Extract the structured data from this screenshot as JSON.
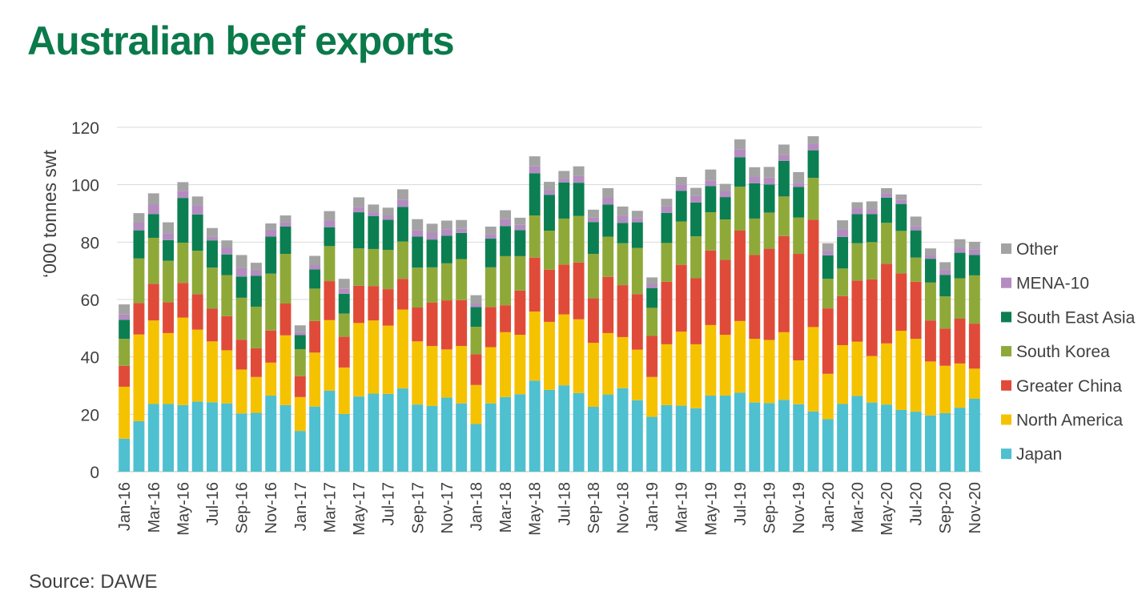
{
  "title": "Australian beef exports",
  "source": "Source: DAWE",
  "colors": {
    "Japan": "#4ec0d0",
    "North America": "#f5c200",
    "Greater China": "#e04b39",
    "South Korea": "#8fa939",
    "South East Asia": "#0b7f52",
    "MENA-10": "#b48cc0",
    "Other": "#a3a3a3"
  },
  "chart_data": {
    "type": "bar",
    "stacked": true,
    "ylabel": "‘000 tonnes swt",
    "ylim": [
      0,
      120
    ],
    "yticks": [
      0,
      20,
      40,
      60,
      80,
      100,
      120
    ],
    "grid": true,
    "legend_position": "right",
    "legend_order": [
      "Other",
      "MENA-10",
      "South East Asia",
      "South Korea",
      "Greater China",
      "North America",
      "Japan"
    ],
    "categories": [
      "Jan-16",
      "Feb-16",
      "Mar-16",
      "Apr-16",
      "May-16",
      "Jun-16",
      "Jul-16",
      "Aug-16",
      "Sep-16",
      "Oct-16",
      "Nov-16",
      "Dec-16",
      "Jan-17",
      "Feb-17",
      "Mar-17",
      "Apr-17",
      "May-17",
      "Jun-17",
      "Jul-17",
      "Aug-17",
      "Sep-17",
      "Oct-17",
      "Nov-17",
      "Dec-17",
      "Jan-18",
      "Feb-18",
      "Mar-18",
      "Apr-18",
      "May-18",
      "Jun-18",
      "Jul-18",
      "Aug-18",
      "Sep-18",
      "Oct-18",
      "Nov-18",
      "Dec-18",
      "Jan-19",
      "Feb-19",
      "Mar-19",
      "Apr-19",
      "May-19",
      "Jun-19",
      "Jul-19",
      "Aug-19",
      "Sep-19",
      "Oct-19",
      "Nov-19",
      "Dec-19",
      "Jan-20",
      "Feb-20",
      "Mar-20",
      "Apr-20",
      "May-20",
      "Jun-20",
      "Jul-20",
      "Aug-20",
      "Sep-20",
      "Oct-20",
      "Nov-20"
    ],
    "tick_labels": [
      "Jan-16",
      "",
      "Mar-16",
      "",
      "May-16",
      "",
      "Jul-16",
      "",
      "Sep-16",
      "",
      "Nov-16",
      "",
      "Jan-17",
      "",
      "Mar-17",
      "",
      "May-17",
      "",
      "Jul-17",
      "",
      "Sep-17",
      "",
      "Nov-17",
      "",
      "Jan-18",
      "",
      "Mar-18",
      "",
      "May-18",
      "",
      "Jul-18",
      "",
      "Sep-18",
      "",
      "Nov-18",
      "",
      "Jan-19",
      "",
      "Mar-19",
      "",
      "May-19",
      "",
      "Jul-19",
      "",
      "Sep-19",
      "",
      "Nov-19",
      "",
      "Jan-20",
      "",
      "Mar-20",
      "",
      "May-20",
      "",
      "Jul-20",
      "",
      "Sep-20",
      "",
      "Nov-20"
    ],
    "series": [
      {
        "name": "Japan",
        "values": [
          11.5,
          17.6,
          23.6,
          23.6,
          23.2,
          24.4,
          24.2,
          23.8,
          20.3,
          20.5,
          26.5,
          23.2,
          14.2,
          22.7,
          28.2,
          20.1,
          26.2,
          27.2,
          27.1,
          29.0,
          23.4,
          22.9,
          25.8,
          23.8,
          16.6,
          23.8,
          26.0,
          27.0,
          31.7,
          28.5,
          30.1,
          27.4,
          22.6,
          26.9,
          29.1,
          24.9,
          19.1,
          23.2,
          23.0,
          22.1,
          26.5,
          26.5,
          27.5,
          24.1,
          23.9,
          25.0,
          23.5,
          21.0,
          18.3,
          23.6,
          26.4,
          24.1,
          23.4,
          21.5,
          20.9,
          19.6,
          20.4,
          22.3,
          25.4
        ]
      },
      {
        "name": "North America",
        "values": [
          18.1,
          30.2,
          29.1,
          24.7,
          30.5,
          25.1,
          21.2,
          18.5,
          15.3,
          12.5,
          11.5,
          24.3,
          11.8,
          18.8,
          24.6,
          16.2,
          25.6,
          25.5,
          23.8,
          27.5,
          22.0,
          20.9,
          16.8,
          20.0,
          13.6,
          19.6,
          22.6,
          20.7,
          24.1,
          23.7,
          24.7,
          25.7,
          22.3,
          21.4,
          17.8,
          17.6,
          13.9,
          21.2,
          25.8,
          22.3,
          24.6,
          21.2,
          25.0,
          22.2,
          22.0,
          23.6,
          15.3,
          29.4,
          15.8,
          20.5,
          18.9,
          16.2,
          21.3,
          27.6,
          25.4,
          18.8,
          16.5,
          15.4,
          10.5
        ]
      },
      {
        "name": "Greater China",
        "values": [
          7.3,
          11.0,
          12.8,
          10.7,
          12.1,
          12.3,
          11.4,
          11.9,
          10.4,
          10.0,
          11.2,
          11.1,
          7.3,
          11.0,
          13.6,
          10.7,
          13.0,
          12.0,
          12.7,
          10.7,
          11.8,
          15.1,
          17.1,
          16.0,
          10.7,
          14.0,
          9.4,
          15.4,
          18.8,
          18.2,
          17.4,
          19.8,
          15.5,
          19.6,
          18.1,
          19.4,
          14.3,
          21.8,
          23.3,
          23.0,
          26.0,
          26.1,
          31.5,
          29.2,
          31.8,
          33.5,
          37.1,
          37.4,
          22.8,
          17.1,
          21.3,
          26.7,
          27.8,
          20.0,
          19.9,
          14.3,
          13.0,
          15.6,
          15.7
        ]
      },
      {
        "name": "South Korea",
        "values": [
          9.4,
          15.5,
          16.0,
          14.5,
          14.0,
          15.2,
          14.3,
          14.3,
          14.6,
          14.5,
          19.8,
          17.3,
          9.4,
          11.3,
          12.2,
          8.1,
          13.0,
          12.9,
          13.7,
          13.0,
          13.9,
          12.3,
          12.9,
          14.3,
          9.6,
          13.8,
          17.1,
          12.0,
          14.7,
          13.6,
          16.0,
          16.2,
          15.5,
          14.0,
          14.6,
          16.1,
          9.8,
          13.5,
          15.1,
          14.6,
          13.3,
          14.1,
          15.3,
          12.7,
          12.6,
          13.8,
          12.7,
          14.6,
          10.3,
          9.6,
          13.0,
          13.0,
          14.2,
          14.8,
          8.4,
          13.2,
          11.2,
          14.1,
          16.8
        ]
      },
      {
        "name": "South East Asia",
        "values": [
          6.6,
          9.8,
          8.3,
          7.2,
          15.6,
          12.6,
          9.5,
          7.2,
          7.4,
          10.8,
          12.9,
          9.5,
          4.9,
          6.7,
          6.6,
          6.9,
          12.6,
          11.5,
          10.5,
          12.1,
          10.8,
          9.7,
          9.6,
          9.1,
          6.9,
          10.0,
          10.5,
          9.1,
          14.7,
          12.5,
          12.6,
          11.6,
          11.1,
          11.2,
          7.1,
          8.9,
          6.9,
          10.5,
          10.7,
          11.8,
          9.1,
          7.8,
          10.3,
          12.3,
          9.8,
          12.4,
          10.6,
          9.6,
          8.2,
          11.0,
          10.2,
          9.8,
          8.8,
          9.4,
          9.5,
          8.3,
          7.5,
          8.9,
          7.1
        ]
      },
      {
        "name": "MENA-10",
        "values": [
          2.0,
          2.7,
          3.4,
          2.4,
          2.5,
          3.3,
          1.2,
          2.3,
          2.9,
          1.9,
          2.4,
          1.5,
          1.0,
          1.5,
          2.3,
          1.7,
          1.9,
          1.3,
          1.5,
          2.4,
          2.3,
          2.4,
          2.3,
          1.4,
          1.2,
          1.6,
          2.4,
          1.8,
          2.4,
          1.6,
          1.3,
          2.3,
          1.5,
          2.5,
          2.5,
          1.5,
          1.3,
          2.2,
          2.2,
          2.3,
          2.0,
          2.1,
          2.8,
          2.2,
          2.4,
          2.1,
          1.5,
          2.3,
          1.6,
          2.6,
          2.0,
          1.6,
          1.5,
          1.5,
          1.5,
          1.3,
          1.7,
          1.7,
          2.0
        ]
      },
      {
        "name": "Other",
        "values": [
          3.4,
          3.3,
          3.8,
          3.8,
          3.0,
          3.0,
          3.1,
          2.6,
          4.6,
          2.6,
          2.2,
          2.4,
          2.4,
          3.2,
          3.3,
          3.5,
          3.3,
          2.7,
          2.7,
          3.7,
          3.8,
          3.1,
          3.0,
          3.1,
          2.9,
          2.6,
          3.1,
          2.5,
          3.5,
          2.9,
          2.7,
          3.4,
          2.8,
          3.2,
          3.2,
          2.5,
          2.4,
          2.7,
          2.6,
          2.8,
          3.8,
          2.5,
          3.4,
          3.4,
          3.7,
          3.6,
          3.7,
          2.6,
          2.6,
          3.2,
          2.1,
          2.8,
          1.8,
          1.8,
          3.3,
          2.3,
          2.7,
          3.0,
          2.6
        ]
      }
    ]
  }
}
